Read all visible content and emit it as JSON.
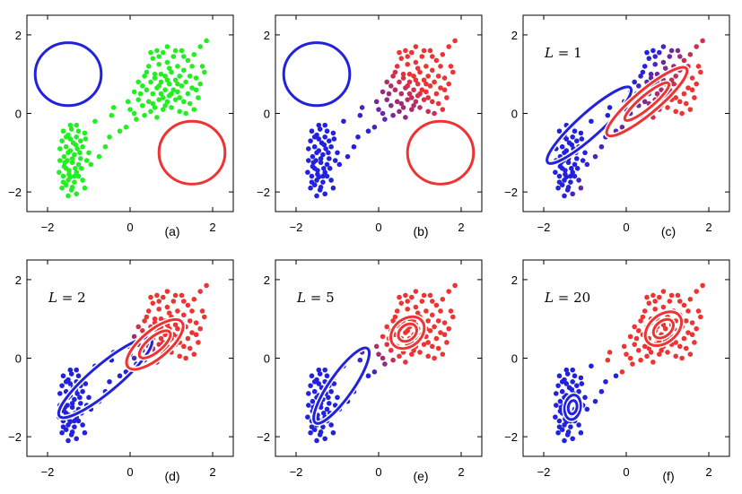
{
  "chart_data": [
    {
      "type": "scatter",
      "panel_label": "(a)",
      "annotation": "",
      "xlim": [
        -2.5,
        2.5
      ],
      "ylim": [
        -2.5,
        2.5
      ],
      "x_ticks": [
        -2,
        0,
        2
      ],
      "x_tick_labels": [
        "−2",
        "0",
        "2"
      ],
      "y_ticks": [
        -2,
        0,
        2
      ],
      "y_tick_labels": [
        "−2",
        "0",
        "2"
      ],
      "grid": false,
      "point_color_mode": "single",
      "point_color": "#22ee22",
      "ellipses": [
        {
          "cx": -1.5,
          "cy": 1.0,
          "rx": 0.8,
          "ry": 0.8,
          "angle": 0,
          "color": "#2222dd",
          "rings": 1
        },
        {
          "cx": 1.5,
          "cy": -1.0,
          "rx": 0.8,
          "ry": 0.8,
          "angle": 0,
          "color": "#ee3333",
          "rings": 1
        }
      ]
    },
    {
      "type": "scatter",
      "panel_label": "(b)",
      "annotation": "",
      "xlim": [
        -2.5,
        2.5
      ],
      "ylim": [
        -2.5,
        2.5
      ],
      "x_ticks": [
        -2,
        0,
        2
      ],
      "x_tick_labels": [
        "−2",
        "0",
        "2"
      ],
      "y_ticks": [
        -2,
        0,
        2
      ],
      "y_tick_labels": [
        "−2",
        "0",
        "2"
      ],
      "grid": false,
      "point_color_mode": "gradient",
      "ellipses": [
        {
          "cx": -1.5,
          "cy": 1.0,
          "rx": 0.8,
          "ry": 0.8,
          "angle": 0,
          "color": "#2222dd",
          "rings": 1
        },
        {
          "cx": 1.5,
          "cy": -1.0,
          "rx": 0.8,
          "ry": 0.8,
          "angle": 0,
          "color": "#ee3333",
          "rings": 1
        }
      ]
    },
    {
      "type": "scatter",
      "panel_label": "(c)",
      "annotation": "L = 1",
      "annotation_var": "L",
      "annotation_val": "= 1",
      "xlim": [
        -2.5,
        2.5
      ],
      "ylim": [
        -2.5,
        2.5
      ],
      "x_ticks": [
        -2,
        0,
        2
      ],
      "x_tick_labels": [
        "−2",
        "0",
        "2"
      ],
      "y_ticks": [
        -2,
        0,
        2
      ],
      "y_tick_labels": [
        "−2",
        "0",
        "2"
      ],
      "grid": false,
      "point_color_mode": "gradient",
      "ellipses": [
        {
          "cx": -0.9,
          "cy": -0.3,
          "rx": 1.35,
          "ry": 0.3,
          "angle": 42,
          "color": "#2222dd",
          "rings": 1
        },
        {
          "cx": 0.5,
          "cy": 0.3,
          "rx": 1.25,
          "ry": 0.3,
          "angle": 40,
          "color": "#ee3333",
          "rings": 2
        }
      ]
    },
    {
      "type": "scatter",
      "panel_label": "(d)",
      "annotation": "L = 2",
      "annotation_var": "L",
      "annotation_val": "= 2",
      "xlim": [
        -2.5,
        2.5
      ],
      "ylim": [
        -2.5,
        2.5
      ],
      "x_ticks": [
        -2,
        0,
        2
      ],
      "x_tick_labels": [
        "−2",
        "0",
        "2"
      ],
      "y_ticks": [
        -2,
        0,
        2
      ],
      "y_tick_labels": [
        "−2",
        "0",
        "2"
      ],
      "grid": false,
      "point_color_mode": "gradient",
      "ellipses": [
        {
          "cx": -0.6,
          "cy": -0.5,
          "rx": 1.45,
          "ry": 0.35,
          "angle": 40,
          "color": "#2222dd",
          "rings": 1
        },
        {
          "cx": 0.6,
          "cy": 0.35,
          "rx": 0.85,
          "ry": 0.35,
          "angle": 40,
          "color": "#ee3333",
          "rings": 2
        }
      ]
    },
    {
      "type": "scatter",
      "panel_label": "(e)",
      "annotation": "L = 5",
      "annotation_var": "L",
      "annotation_val": "= 5",
      "xlim": [
        -2.5,
        2.5
      ],
      "ylim": [
        -2.5,
        2.5
      ],
      "x_ticks": [
        -2,
        0,
        2
      ],
      "x_tick_labels": [
        "−2",
        "0",
        "2"
      ],
      "y_ticks": [
        -2,
        0,
        2
      ],
      "y_tick_labels": [
        "−2",
        "0",
        "2"
      ],
      "grid": false,
      "point_color_mode": "gradient",
      "ellipses": [
        {
          "cx": -0.9,
          "cy": -0.7,
          "rx": 1.1,
          "ry": 0.3,
          "angle": 55,
          "color": "#2222dd",
          "rings": 1
        },
        {
          "cx": 0.7,
          "cy": 0.65,
          "rx": 0.45,
          "ry": 0.35,
          "angle": 40,
          "color": "#ee3333",
          "rings": 2
        }
      ]
    },
    {
      "type": "scatter",
      "panel_label": "(f)",
      "annotation": "L = 20",
      "annotation_var": "L",
      "annotation_val": "= 20",
      "xlim": [
        -2.5,
        2.5
      ],
      "ylim": [
        -2.5,
        2.5
      ],
      "x_ticks": [
        -2,
        0,
        2
      ],
      "x_tick_labels": [
        "−2",
        "0",
        "2"
      ],
      "y_ticks": [
        -2,
        0,
        2
      ],
      "y_tick_labels": [
        "−2",
        "0",
        "2"
      ],
      "grid": false,
      "point_color_mode": "hard",
      "ellipses": [
        {
          "cx": -1.3,
          "cy": -1.25,
          "rx": 0.3,
          "ry": 0.2,
          "angle": 80,
          "color": "#2222dd",
          "rings": 2
        },
        {
          "cx": 0.9,
          "cy": 0.75,
          "rx": 0.5,
          "ry": 0.35,
          "angle": 40,
          "color": "#ee3333",
          "rings": 2
        }
      ]
    }
  ],
  "points": [
    [
      -1.55,
      -1.82
    ],
    [
      -1.5,
      -1.7
    ],
    [
      -1.42,
      -1.95
    ],
    [
      -1.62,
      -1.6
    ],
    [
      -1.35,
      -1.75
    ],
    [
      -1.48,
      -1.45
    ],
    [
      -1.3,
      -1.5
    ],
    [
      -1.6,
      -1.35
    ],
    [
      -1.4,
      -1.25
    ],
    [
      -1.25,
      -1.3
    ],
    [
      -1.52,
      -1.2
    ],
    [
      -1.35,
      -1.05
    ],
    [
      -1.6,
      -1.1
    ],
    [
      -1.2,
      -1.15
    ],
    [
      -1.45,
      -0.95
    ],
    [
      -1.28,
      -0.9
    ],
    [
      -1.55,
      -0.85
    ],
    [
      -1.38,
      -0.75
    ],
    [
      -1.65,
      -0.7
    ],
    [
      -1.2,
      -0.7
    ],
    [
      -1.5,
      -0.55
    ],
    [
      -1.3,
      -0.6
    ],
    [
      -1.62,
      -0.45
    ],
    [
      -1.42,
      -0.4
    ],
    [
      -1.25,
      -0.45
    ],
    [
      -1.1,
      -0.5
    ],
    [
      -1.05,
      -1.2
    ],
    [
      -1.15,
      -1.7
    ],
    [
      -1.3,
      -2.05
    ],
    [
      -1.5,
      -2.1
    ],
    [
      -1.65,
      -1.9
    ],
    [
      -1.72,
      -1.5
    ],
    [
      -1.7,
      -1.2
    ],
    [
      -1.7,
      -0.9
    ],
    [
      -1.0,
      -1.0
    ],
    [
      -0.95,
      -1.3
    ],
    [
      -1.1,
      -1.9
    ],
    [
      -1.35,
      -1.6
    ],
    [
      -1.45,
      -1.62
    ],
    [
      -1.55,
      -1.4
    ],
    [
      -1.33,
      -1.4
    ],
    [
      -1.4,
      -1.15
    ],
    [
      -1.5,
      -1.0
    ],
    [
      -1.22,
      -1.0
    ],
    [
      -1.32,
      -0.8
    ],
    [
      -1.45,
      -0.65
    ],
    [
      -1.55,
      -0.6
    ],
    [
      -1.15,
      -0.85
    ],
    [
      -1.4,
      -1.88
    ],
    [
      -1.58,
      -1.25
    ],
    [
      -1.25,
      -1.6
    ],
    [
      -1.48,
      -1.55
    ],
    [
      -1.18,
      -1.4
    ],
    [
      -1.62,
      -1.75
    ],
    [
      -1.08,
      -0.65
    ],
    [
      -1.45,
      -0.3
    ],
    [
      -1.3,
      -0.3
    ],
    [
      -0.6,
      -0.85
    ],
    [
      -0.75,
      -1.1
    ],
    [
      -0.5,
      -0.6
    ],
    [
      -0.85,
      -0.2
    ],
    [
      -0.45,
      -0.05
    ],
    [
      -0.4,
      0.15
    ],
    [
      -0.1,
      -0.35
    ],
    [
      -0.25,
      -0.45
    ],
    [
      0.0,
      0.1
    ],
    [
      0.15,
      -0.15
    ],
    [
      -0.05,
      0.3
    ],
    [
      0.1,
      0.55
    ],
    [
      0.2,
      0.8
    ],
    [
      0.3,
      0.2
    ],
    [
      0.25,
      0.5
    ],
    [
      0.35,
      0.95
    ],
    [
      0.4,
      0.6
    ],
    [
      0.45,
      0.3
    ],
    [
      0.45,
      1.2
    ],
    [
      0.5,
      0.8
    ],
    [
      0.55,
      0.5
    ],
    [
      0.55,
      1.4
    ],
    [
      0.6,
      0.15
    ],
    [
      0.6,
      1.0
    ],
    [
      0.65,
      0.65
    ],
    [
      0.7,
      0.35
    ],
    [
      0.7,
      1.25
    ],
    [
      0.75,
      0.8
    ],
    [
      0.75,
      0.5
    ],
    [
      0.8,
      1.55
    ],
    [
      0.8,
      0.1
    ],
    [
      0.85,
      0.95
    ],
    [
      0.85,
      0.6
    ],
    [
      0.9,
      0.3
    ],
    [
      0.9,
      1.3
    ],
    [
      0.95,
      0.75
    ],
    [
      0.95,
      0.45
    ],
    [
      1.0,
      1.05
    ],
    [
      1.0,
      0.15
    ],
    [
      1.05,
      0.6
    ],
    [
      1.05,
      1.45
    ],
    [
      1.1,
      0.85
    ],
    [
      1.1,
      0.35
    ],
    [
      1.15,
      1.2
    ],
    [
      1.15,
      0.55
    ],
    [
      1.2,
      0.05
    ],
    [
      1.2,
      0.95
    ],
    [
      1.25,
      0.7
    ],
    [
      1.25,
      1.6
    ],
    [
      1.3,
      0.3
    ],
    [
      1.3,
      1.1
    ],
    [
      1.35,
      0.8
    ],
    [
      1.4,
      1.35
    ],
    [
      1.4,
      0.5
    ],
    [
      1.45,
      0.95
    ],
    [
      1.5,
      1.2
    ],
    [
      1.5,
      0.65
    ],
    [
      1.55,
      1.5
    ],
    [
      1.6,
      0.9
    ],
    [
      1.65,
      0.4
    ],
    [
      1.7,
      1.7
    ],
    [
      1.85,
      1.85
    ],
    [
      1.75,
      1.2
    ],
    [
      0.35,
      -0.05
    ],
    [
      0.5,
      0.05
    ],
    [
      0.65,
      -0.1
    ],
    [
      0.55,
      0.25
    ],
    [
      0.7,
      0.7
    ],
    [
      0.8,
      0.4
    ],
    [
      0.6,
      0.9
    ],
    [
      0.9,
      0.85
    ],
    [
      1.0,
      0.5
    ],
    [
      0.85,
      0.2
    ],
    [
      1.15,
      0.75
    ],
    [
      1.2,
      0.4
    ],
    [
      0.95,
      1.15
    ],
    [
      0.75,
      1.0
    ],
    [
      0.65,
      1.6
    ],
    [
      0.4,
      1.05
    ],
    [
      0.3,
      0.7
    ],
    [
      0.2,
      0.35
    ],
    [
      0.1,
      0.0
    ],
    [
      1.35,
      0.0
    ],
    [
      1.45,
      0.25
    ],
    [
      1.6,
      0.6
    ],
    [
      1.3,
      1.45
    ],
    [
      1.1,
      1.6
    ],
    [
      0.9,
      1.7
    ],
    [
      0.7,
      1.45
    ],
    [
      0.5,
      1.55
    ],
    [
      1.55,
      0.1
    ],
    [
      1.7,
      0.75
    ],
    [
      1.8,
      1.05
    ]
  ],
  "colors": {
    "blue": "#2222dd",
    "red": "#ee3333",
    "green": "#22ee22",
    "white": "#ffffff",
    "axis": "#000000"
  }
}
